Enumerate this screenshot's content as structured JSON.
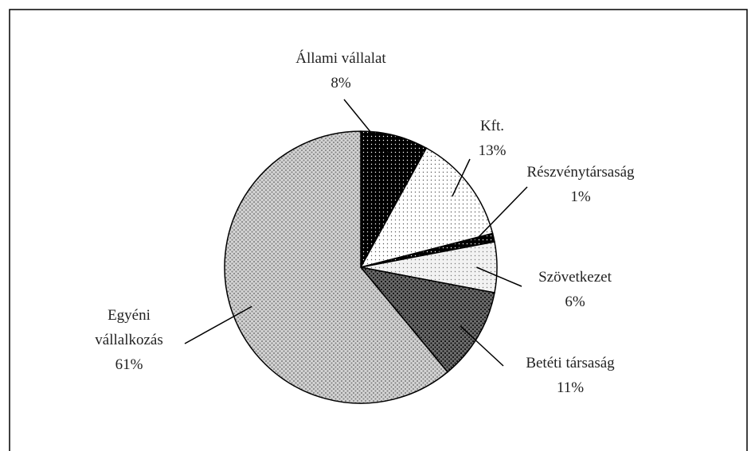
{
  "chart_data": {
    "type": "pie",
    "categories": [
      "Állami vállalat",
      "Kft.",
      "Részvénytársaság",
      "Szövetkezet",
      "Betéti társaság",
      "Egyéni vállalkozás"
    ],
    "values": [
      8,
      13,
      1,
      6,
      11,
      61
    ],
    "value_labels": [
      "8%",
      "13%",
      "1%",
      "6%",
      "11%",
      "61%"
    ],
    "colors": [
      "#000000",
      "#ffffff",
      "#000000",
      "#f2f2f2",
      "#6e6e6e",
      "#d4d4d4"
    ]
  }
}
